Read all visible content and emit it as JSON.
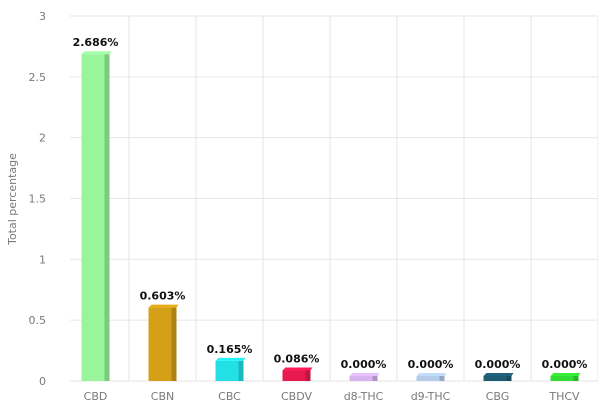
{
  "chart_data": {
    "type": "bar",
    "title": "",
    "xlabel": "",
    "ylabel": "Total percentage",
    "ylim": [
      0,
      3
    ],
    "yticks": [
      "0",
      "0.5",
      "1",
      "1.5",
      "2",
      "2.5",
      "3"
    ],
    "yticks_values": [
      0,
      0.5,
      1,
      1.5,
      2,
      2.5,
      3
    ],
    "grid": true,
    "categories": [
      "CBD",
      "CBN",
      "CBC",
      "CBDV",
      "d8-THC",
      "d9-THC",
      "CBG",
      "THCV"
    ],
    "values": [
      2.686,
      0.603,
      0.165,
      0.086,
      0.0,
      0.0,
      0.0,
      0.0
    ],
    "data_labels": [
      "2.686%",
      "0.603%",
      "0.165%",
      "0.086%",
      "0.000%",
      "0.000%",
      "0.000%",
      "0.000%"
    ],
    "colors": [
      "#98f59c",
      "#d4a017",
      "#22e0e6",
      "#e8194f",
      "#d9b3f0",
      "#b3cdea",
      "#1f5c73",
      "#33dd33"
    ]
  }
}
